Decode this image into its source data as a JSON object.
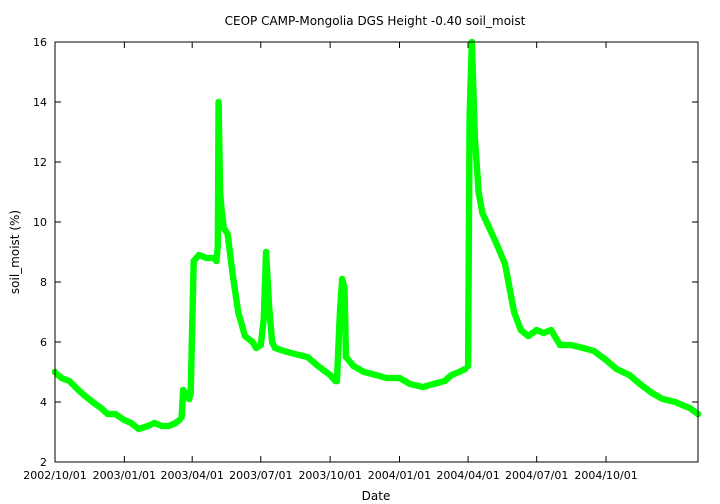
{
  "chart_data": {
    "type": "scatter",
    "title": "CEOP CAMP-Mongolia DGS Height -0.40 soil_moist",
    "xlabel": "Date",
    "ylabel": "soil_moist (%)",
    "xlim": [
      "2002-10-01",
      "2005-01-31"
    ],
    "ylim": [
      2,
      16
    ],
    "grid": false,
    "legend": "none",
    "marker_color": "#00ff00",
    "x_ticks": [
      "2002/10/01",
      "2003/01/01",
      "2003/04/01",
      "2003/07/01",
      "2003/10/01",
      "2004/01/01",
      "2004/04/01",
      "2004/07/01",
      "2004/10/01"
    ],
    "y_ticks": [
      2,
      4,
      6,
      8,
      10,
      12,
      14,
      16
    ],
    "series": [
      {
        "x": [
          "2002-10-01",
          "2002-10-05",
          "2002-10-10",
          "2002-10-20",
          "2002-11-01",
          "2002-11-10",
          "2002-11-20",
          "2002-12-01",
          "2002-12-10",
          "2002-12-20",
          "2003-01-01",
          "2003-01-10",
          "2003-01-20",
          "2003-02-01",
          "2003-02-10",
          "2003-02-20",
          "2003-03-01",
          "2003-03-10",
          "2003-03-15",
          "2003-03-18",
          "2003-03-20",
          "2003-03-25",
          "2003-03-28",
          "2003-03-30",
          "2003-04-03",
          "2003-04-10",
          "2003-04-20",
          "2003-05-01",
          "2003-05-03",
          "2003-05-05",
          "2003-05-06",
          "2003-05-08",
          "2003-05-10",
          "2003-05-13",
          "2003-05-18",
          "2003-05-25",
          "2003-06-01",
          "2003-06-10",
          "2003-06-20",
          "2003-06-25",
          "2003-07-01",
          "2003-07-05",
          "2003-07-08",
          "2003-07-12",
          "2003-07-16",
          "2003-07-20",
          "2003-08-01",
          "2003-08-15",
          "2003-09-01",
          "2003-09-15",
          "2003-10-01",
          "2003-10-08",
          "2003-10-10",
          "2003-10-14",
          "2003-10-17",
          "2003-10-20",
          "2003-10-22",
          "2003-11-01",
          "2003-11-15",
          "2003-12-01",
          "2003-12-15",
          "2004-01-01",
          "2004-01-15",
          "2004-02-01",
          "2004-02-15",
          "2004-03-01",
          "2004-03-10",
          "2004-03-20",
          "2004-03-28",
          "2004-04-01",
          "2004-04-03",
          "2004-04-06",
          "2004-04-10",
          "2004-04-15",
          "2004-04-20",
          "2004-05-01",
          "2004-05-10",
          "2004-05-20",
          "2004-06-01",
          "2004-06-10",
          "2004-06-20",
          "2004-07-01",
          "2004-07-10",
          "2004-07-20",
          "2004-08-01",
          "2004-08-15",
          "2004-09-01",
          "2004-09-15",
          "2004-10-01",
          "2004-10-15",
          "2004-11-01",
          "2004-11-15",
          "2004-12-01",
          "2004-12-15",
          "2005-01-01",
          "2005-01-10",
          "2005-01-20",
          "2005-01-31"
        ],
        "y": [
          5.0,
          4.9,
          4.8,
          4.7,
          4.4,
          4.2,
          4.0,
          3.8,
          3.6,
          3.6,
          3.4,
          3.3,
          3.1,
          3.2,
          3.3,
          3.2,
          3.2,
          3.3,
          3.4,
          3.5,
          4.4,
          4.2,
          4.1,
          4.3,
          8.7,
          8.9,
          8.8,
          8.8,
          8.7,
          9.2,
          14.0,
          11.0,
          10.4,
          9.8,
          9.6,
          8.2,
          7.0,
          6.2,
          6.0,
          5.8,
          5.9,
          6.8,
          9.0,
          7.2,
          6.0,
          5.8,
          5.7,
          5.6,
          5.5,
          5.2,
          4.9,
          4.7,
          4.7,
          7.0,
          8.1,
          7.8,
          5.5,
          5.2,
          5.0,
          4.9,
          4.8,
          4.8,
          4.6,
          4.5,
          4.6,
          4.7,
          4.9,
          5.0,
          5.1,
          5.2,
          13.5,
          16.0,
          12.8,
          11.0,
          10.3,
          9.7,
          9.2,
          8.6,
          7.0,
          6.4,
          6.2,
          6.4,
          6.3,
          6.4,
          5.9,
          5.9,
          5.8,
          5.7,
          5.4,
          5.1,
          4.9,
          4.6,
          4.3,
          4.1,
          4.0,
          3.9,
          3.8,
          3.6
        ]
      }
    ]
  }
}
